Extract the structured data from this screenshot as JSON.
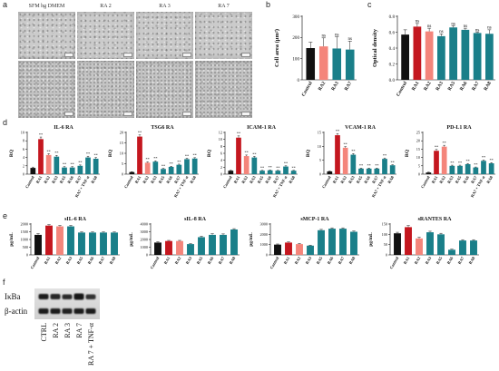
{
  "panel_labels": {
    "a": "a",
    "b": "b",
    "c": "c",
    "d": "d",
    "e": "e",
    "f": "f"
  },
  "microscopy": {
    "columns": [
      "SFM hg DMEM",
      "RA 2",
      "RA 3",
      "RA 7"
    ]
  },
  "colors": {
    "category_colors": {
      "Control": "#111111",
      "RA1": "#c4171f",
      "RA2": "#f4857b"
    },
    "default_bar": "#1a7f89"
  },
  "chart_data": [
    {
      "type": "bar",
      "title": "",
      "ylabel": "Cell area (μm²)",
      "categories": [
        "Control",
        "RA2",
        "RA3",
        "RA7"
      ],
      "values": [
        150,
        158,
        148,
        143
      ],
      "errors": [
        28,
        40,
        55,
        40
      ],
      "ylim": [
        0,
        300
      ],
      "yticks": [
        "0",
        "100",
        "200",
        "300"
      ],
      "annotations": [
        "",
        "ns",
        "ns",
        "ns"
      ]
    },
    {
      "type": "bar",
      "title": "",
      "ylabel": "Optical density",
      "categories": [
        "Control",
        "RA1",
        "RA2",
        "RA3",
        "RA5",
        "RA6",
        "RA7",
        "RA8"
      ],
      "values": [
        0.57,
        0.67,
        0.61,
        0.55,
        0.66,
        0.63,
        0.59,
        0.58
      ],
      "errors": [
        0.06,
        0.04,
        0.04,
        0.03,
        0.02,
        0.02,
        0.01,
        0.05
      ],
      "ylim": [
        0,
        0.8
      ],
      "yticks": [
        "0.0",
        "0.2",
        "0.4",
        "0.6",
        "0.8"
      ],
      "annotations": [
        "",
        "ns",
        "ns",
        "ns",
        "ns",
        "ns",
        "ns",
        "ns"
      ]
    },
    {
      "type": "bar",
      "title": "IL-6 RA",
      "ylabel": "RQ",
      "categories": [
        "Control",
        "RA1",
        "RA2",
        "RA3",
        "RA5",
        "RA6",
        "RA7",
        "RA7 + TNF-α",
        "RA8"
      ],
      "values": [
        1.5,
        8.4,
        4.6,
        4.2,
        1.6,
        1.6,
        2.0,
        4.0,
        3.7
      ],
      "errors": [
        0.2,
        0.5,
        0.3,
        0.3,
        0.2,
        0.2,
        0.2,
        0.3,
        0.3
      ],
      "ylim": [
        0,
        10
      ],
      "yticks": [
        "0",
        "2",
        "4",
        "6",
        "8",
        "10"
      ],
      "annotations": [
        "",
        "**",
        "**",
        "**",
        "**",
        "**",
        "**",
        "**",
        "**"
      ]
    },
    {
      "type": "bar",
      "title": "TSG6 RA",
      "ylabel": "RQ",
      "categories": [
        "Control",
        "RA1",
        "RA2",
        "RA3",
        "RA5",
        "RA6",
        "RA7",
        "RA7 + TNF-α",
        "RA8"
      ],
      "values": [
        1.0,
        18.0,
        5.5,
        6.0,
        2.5,
        3.5,
        4.5,
        7.2,
        7.5
      ],
      "errors": [
        0.2,
        0.8,
        0.4,
        0.4,
        0.3,
        0.3,
        0.3,
        0.4,
        0.4
      ],
      "ylim": [
        0,
        20
      ],
      "yticks": [
        "0",
        "5",
        "10",
        "15",
        "20"
      ],
      "annotations": [
        "",
        "**",
        "**",
        "**",
        "**",
        "**",
        "**",
        "**",
        "**"
      ]
    },
    {
      "type": "bar",
      "title": "ICAM-1 RA",
      "ylabel": "RQ",
      "categories": [
        "Control",
        "RA1",
        "RA2",
        "RA3",
        "RA5",
        "RA6",
        "RA7",
        "RA7 + TNF-α",
        "RA8"
      ],
      "values": [
        1.0,
        10.5,
        5.2,
        4.8,
        1.0,
        1.1,
        1.0,
        2.2,
        1.0
      ],
      "errors": [
        0.1,
        0.5,
        0.3,
        0.3,
        0.1,
        0.1,
        0.1,
        0.2,
        0.1
      ],
      "ylim": [
        0,
        12
      ],
      "yticks": [
        "0",
        "2",
        "4",
        "6",
        "8",
        "10",
        "12"
      ],
      "annotations": [
        "",
        "**",
        "**",
        "**",
        "**",
        "**",
        "**",
        "**",
        "**"
      ]
    },
    {
      "type": "bar",
      "title": "VCAM-1 RA",
      "ylabel": "RQ",
      "categories": [
        "Control",
        "RA1",
        "RA2",
        "RA3",
        "RA5",
        "RA6",
        "RA7",
        "RA7 + TNF-α",
        "RA8"
      ],
      "values": [
        1.0,
        14.0,
        9.5,
        7.0,
        2.0,
        2.0,
        2.0,
        5.5,
        3.2
      ],
      "errors": [
        0.1,
        0.6,
        0.4,
        0.4,
        0.2,
        0.2,
        0.2,
        0.3,
        0.2
      ],
      "ylim": [
        0,
        15
      ],
      "yticks": [
        "0",
        "5",
        "10",
        "15"
      ],
      "annotations": [
        "",
        "**",
        "**",
        "**",
        "**",
        "**",
        "**",
        "**",
        "**"
      ]
    },
    {
      "type": "bar",
      "title": "PD-L1 RA",
      "ylabel": "RQ",
      "categories": [
        "Control",
        "RA1",
        "RA2",
        "RA3",
        "RA5",
        "RA6",
        "RA7",
        "RA7 + TNF-α",
        "RA8"
      ],
      "values": [
        1.0,
        14.0,
        16.5,
        5.0,
        5.0,
        6.0,
        4.0,
        8.0,
        6.5
      ],
      "errors": [
        0.2,
        0.8,
        0.8,
        0.4,
        0.4,
        0.4,
        0.3,
        0.5,
        0.4
      ],
      "ylim": [
        0,
        25
      ],
      "yticks": [
        "0",
        "5",
        "10",
        "15",
        "20",
        "25"
      ],
      "annotations": [
        "",
        "**",
        "**",
        "**",
        "**",
        "**",
        "**",
        "**",
        "**"
      ]
    },
    {
      "type": "bar",
      "title": "sIL-6 RA",
      "ylabel": "pg/mL",
      "categories": [
        "Control",
        "RA1",
        "RA2",
        "RA3",
        "RA5",
        "RA6",
        "RA7",
        "RA8"
      ],
      "values": [
        1300,
        1900,
        1850,
        1850,
        1450,
        1450,
        1450,
        1450
      ],
      "errors": [
        80,
        60,
        60,
        60,
        40,
        40,
        40,
        40
      ],
      "ylim": [
        0,
        2000
      ],
      "yticks": [
        "0",
        "500",
        "1000",
        "1500",
        "2000"
      ]
    },
    {
      "type": "bar",
      "title": "sIL-8 RA",
      "ylabel": "pg/mL",
      "categories": [
        "Control",
        "RA1",
        "RA2",
        "RA3",
        "RA5",
        "RA6",
        "RA7",
        "RA8"
      ],
      "values": [
        1600,
        1800,
        1800,
        1400,
        2300,
        2600,
        2600,
        3300
      ],
      "errors": [
        100,
        80,
        80,
        60,
        120,
        150,
        120,
        100
      ],
      "ylim": [
        0,
        4000
      ],
      "yticks": [
        "0",
        "1000",
        "2000",
        "3000",
        "4000"
      ]
    },
    {
      "type": "bar",
      "title": "sMCP-1 RA",
      "ylabel": "pg/mL",
      "categories": [
        "Control",
        "RA1",
        "RA2",
        "RA3",
        "RA5",
        "RA6",
        "RA7",
        "RA8"
      ],
      "values": [
        1000,
        1200,
        1050,
        900,
        2400,
        2550,
        2550,
        2250
      ],
      "errors": [
        60,
        60,
        60,
        50,
        80,
        80,
        80,
        80
      ],
      "ylim": [
        0,
        3000
      ],
      "yticks": [
        "0",
        "1000",
        "2000",
        "3000"
      ]
    },
    {
      "type": "bar",
      "title": "sRANTES RA",
      "ylabel": "pg/mL",
      "categories": [
        "Control",
        "RA1",
        "RA2",
        "RA3",
        "RA5",
        "RA6",
        "RA7",
        "RA8"
      ],
      "values": [
        105,
        135,
        80,
        110,
        100,
        25,
        70,
        70
      ],
      "errors": [
        5,
        8,
        6,
        5,
        5,
        3,
        4,
        4
      ],
      "ylim": [
        0,
        150
      ],
      "yticks": [
        "0",
        "50",
        "100",
        "150"
      ]
    }
  ],
  "blot": {
    "rows": [
      "IκBa",
      "β-actin"
    ],
    "lanes": [
      "CTRL",
      "RA 2",
      "RA 3",
      "RA 7",
      "RA 7 + TNF-α"
    ]
  }
}
